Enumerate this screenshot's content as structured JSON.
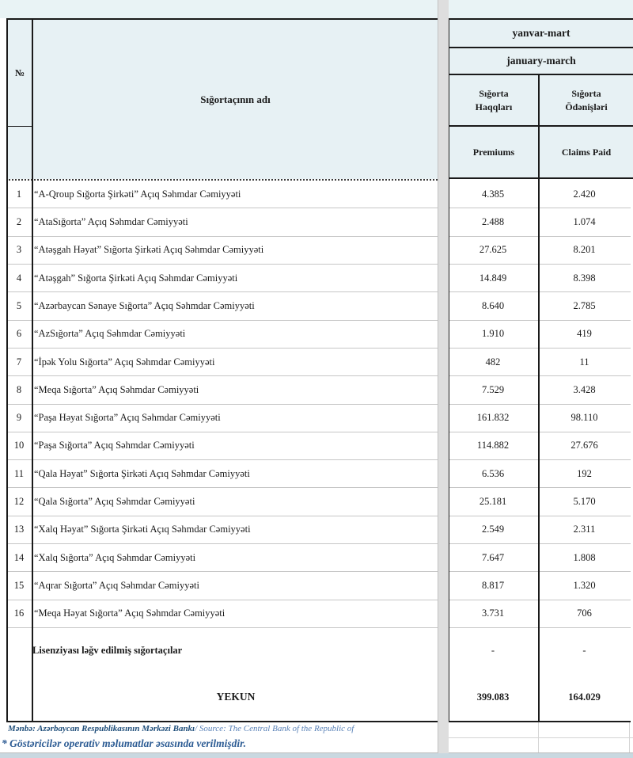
{
  "header": {
    "no": "№",
    "insurer_name": "Sığortaçının adı",
    "period_az": "yanvar-mart",
    "period_en": "january-march",
    "premiums_az": "Sığorta Haqqları",
    "claims_az": "Sığorta Ödənişləri",
    "premiums_en": "Premiums",
    "claims_en": "Claims Paid"
  },
  "rows": [
    {
      "no": "1",
      "name": "“A-Qroup Sığorta Şirkəti” Açıq Səhmdar Cəmiyyəti",
      "premiums": "4.385",
      "claims": "2.420"
    },
    {
      "no": "2",
      "name": "“AtaSığorta” Açıq Səhmdar Cəmiyyəti",
      "premiums": "2.488",
      "claims": "1.074"
    },
    {
      "no": "3",
      "name": "“Atəşgah Həyat” Sığorta Şirkəti Açıq Səhmdar Cəmiyyəti",
      "premiums": "27.625",
      "claims": "8.201"
    },
    {
      "no": "4",
      "name": "“Atəşgah” Sığorta Şirkəti Açıq Səhmdar Cəmiyyəti",
      "premiums": "14.849",
      "claims": "8.398"
    },
    {
      "no": "5",
      "name": "“Azərbaycan Sənaye Sığorta” Açıq Səhmdar Cəmiyyəti",
      "premiums": "8.640",
      "claims": "2.785"
    },
    {
      "no": "6",
      "name": "“AzSığorta” Açıq Səhmdar Cəmiyyəti",
      "premiums": "1.910",
      "claims": "419"
    },
    {
      "no": "7",
      "name": "“İpək Yolu Sığorta” Açıq Səhmdar Cəmiyyəti",
      "premiums": "482",
      "claims": "11"
    },
    {
      "no": "8",
      "name": "“Meqa Sığorta” Açıq Səhmdar Cəmiyyəti",
      "premiums": "7.529",
      "claims": "3.428"
    },
    {
      "no": "9",
      "name": "“Paşa Həyat Sığorta” Açıq Səhmdar Cəmiyyəti",
      "premiums": "161.832",
      "claims": "98.110"
    },
    {
      "no": "10",
      "name": "“Paşa Sığorta” Açıq Səhmdar Cəmiyyəti",
      "premiums": "114.882",
      "claims": "27.676"
    },
    {
      "no": "11",
      "name": "“Qala Həyat” Sığorta Şirkəti Açıq Səhmdar Cəmiyyəti",
      "premiums": "6.536",
      "claims": "192"
    },
    {
      "no": "12",
      "name": "“Qala Sığorta” Açıq Səhmdar Cəmiyyəti",
      "premiums": "25.181",
      "claims": "5.170"
    },
    {
      "no": "13",
      "name": "“Xalq Həyat” Sığorta Şirkəti Açıq Səhmdar Cəmiyyəti",
      "premiums": "2.549",
      "claims": "2.311"
    },
    {
      "no": "14",
      "name": "“Xalq Sığorta” Açıq Səhmdar Cəmiyyəti",
      "premiums": "7.647",
      "claims": "1.808"
    },
    {
      "no": "15",
      "name": "“Aqrar Sığorta” Açıq Səhmdar Cəmiyyəti",
      "premiums": "8.817",
      "claims": "1.320"
    },
    {
      "no": "16",
      "name": "“Meqa Həyat Sığorta” Açıq Səhmdar Cəmiyyəti",
      "premiums": "3.731",
      "claims": "706"
    }
  ],
  "revoked_row": {
    "name": "Lisenziyası ləğv edilmiş sığortaçılar",
    "premiums": "-",
    "claims": "-"
  },
  "total_row": {
    "name": "YEKUN",
    "premiums": "399.083",
    "claims": "164.029"
  },
  "footer": {
    "source_az": "Mənbə: Azərbaycan Respublikasının Mərkəzi Bankı",
    "source_en": "/ Source: The Central Bank of the Republic of",
    "note": "* Göstəricilər operativ məlumatlar əsasında verilmişdir."
  },
  "colors": {
    "header_fill": "#e7f1f4",
    "pane_band": "#dedede",
    "border": "#1a1a1a",
    "row_separator": "#c6c6c6",
    "footer_text": "#1f4e7a"
  }
}
